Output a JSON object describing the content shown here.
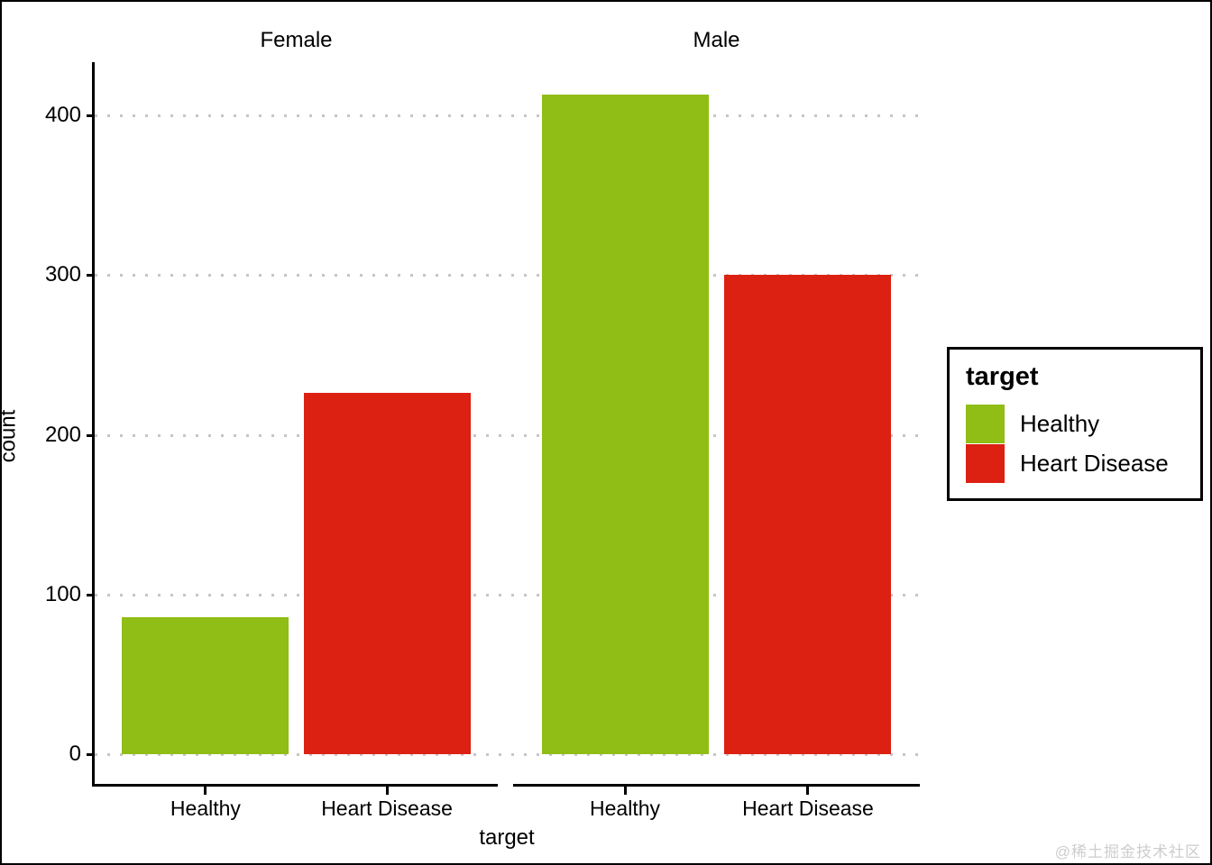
{
  "watermark": "@稀土掘金技术社区",
  "colors": {
    "healthy": "#90BD16",
    "heart_disease": "#DC2011",
    "grid_dots": "#C6C6C6",
    "axis": "#000000",
    "text": "#000000",
    "watermark": "#CDCDCD"
  },
  "legend": {
    "title": "target",
    "items": [
      {
        "label": "Healthy",
        "color": "#90BD16"
      },
      {
        "label": "Heart Disease",
        "color": "#DC2011"
      }
    ]
  },
  "chart_data": {
    "type": "bar",
    "title": "",
    "xlabel": "target",
    "ylabel": "count",
    "categories": [
      "Healthy",
      "Heart Disease"
    ],
    "facets": [
      {
        "label": "Female",
        "values": [
          86,
          226
        ]
      },
      {
        "label": "Male",
        "values": [
          413,
          300
        ]
      }
    ],
    "series_colors": [
      "#90BD16",
      "#DC2011"
    ],
    "yticks": [
      0,
      100,
      200,
      300,
      400
    ],
    "ylim": [
      0,
      430
    ],
    "grid": "dotted-horizontal",
    "legend_position": "right"
  }
}
